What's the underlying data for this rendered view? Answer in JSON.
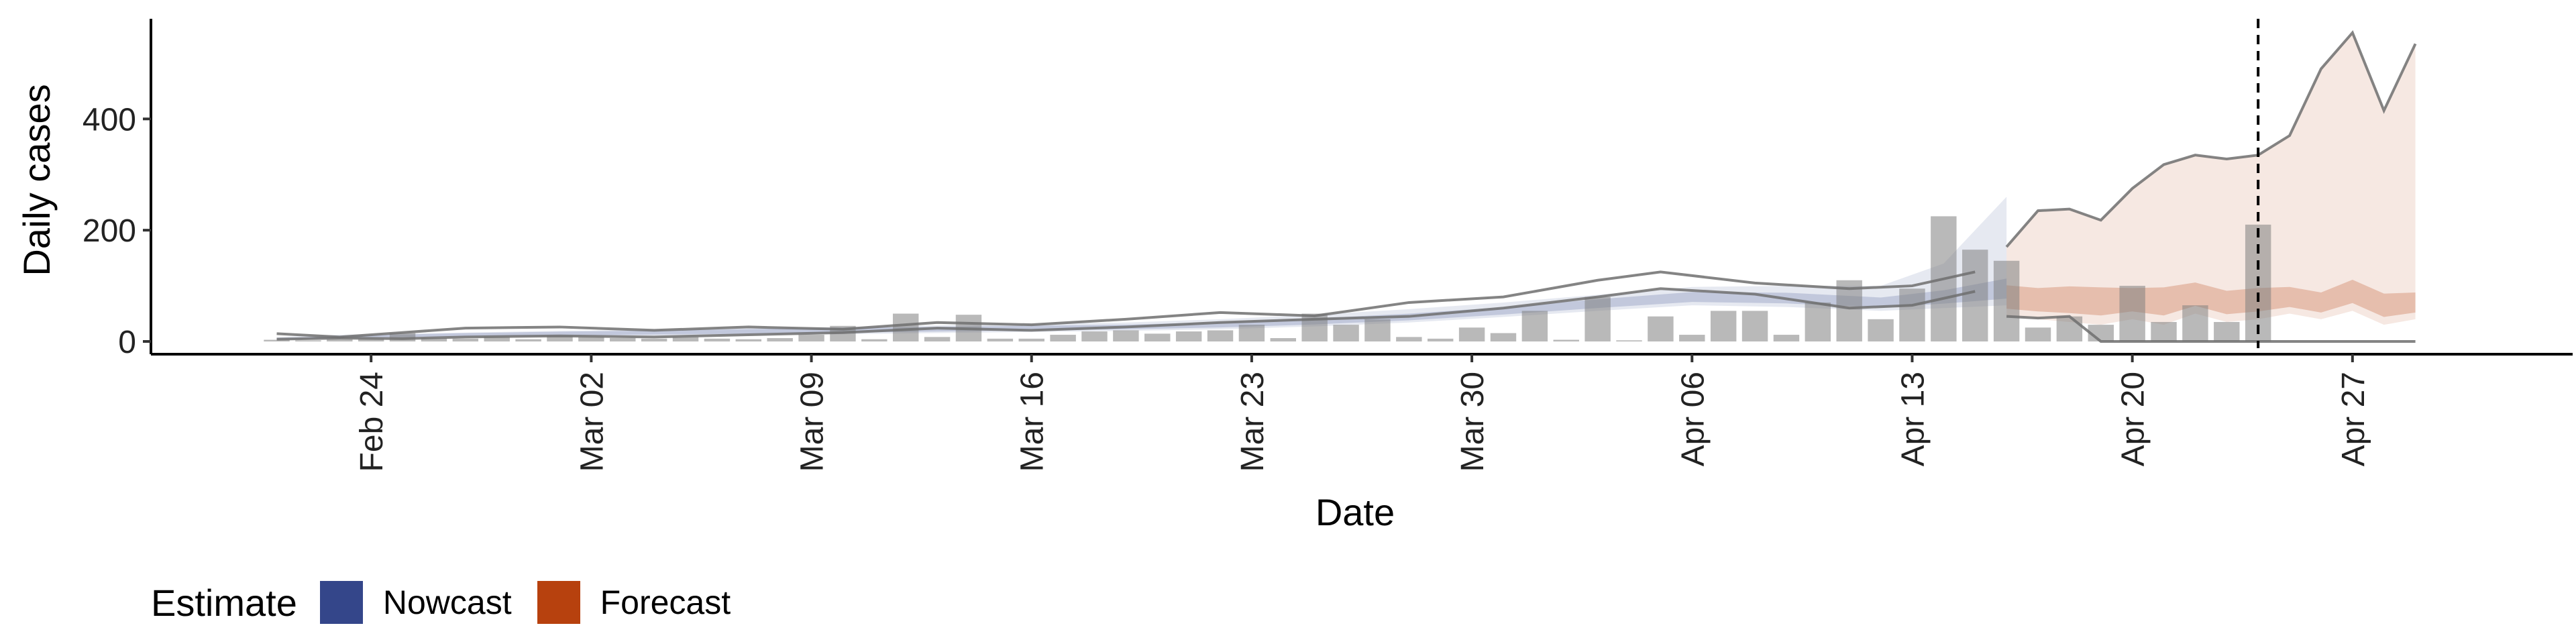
{
  "chart_data": {
    "type": "bar",
    "xlabel": "Date",
    "ylabel": "Daily cases",
    "ylim": [
      0,
      580
    ],
    "yticks": [
      0,
      200,
      400
    ],
    "x_ticks": [
      {
        "date": "2020-02-24",
        "label": "Feb 24"
      },
      {
        "date": "2020-03-02",
        "label": "Mar 02"
      },
      {
        "date": "2020-03-09",
        "label": "Mar 09"
      },
      {
        "date": "2020-03-16",
        "label": "Mar 16"
      },
      {
        "date": "2020-03-23",
        "label": "Mar 23"
      },
      {
        "date": "2020-03-30",
        "label": "Mar 30"
      },
      {
        "date": "2020-04-06",
        "label": "Apr 06"
      },
      {
        "date": "2020-04-13",
        "label": "Apr 13"
      },
      {
        "date": "2020-04-20",
        "label": "Apr 20"
      },
      {
        "date": "2020-04-27",
        "label": "Apr 27"
      }
    ],
    "xlim": [
      "2020-02-17",
      "2020-05-04"
    ],
    "date_line": "2020-04-24",
    "bars": {
      "dates": [
        "2020-02-21",
        "2020-02-22",
        "2020-02-23",
        "2020-02-24",
        "2020-02-25",
        "2020-02-26",
        "2020-02-27",
        "2020-02-28",
        "2020-02-29",
        "2020-03-01",
        "2020-03-02",
        "2020-03-03",
        "2020-03-04",
        "2020-03-05",
        "2020-03-06",
        "2020-03-07",
        "2020-03-08",
        "2020-03-09",
        "2020-03-10",
        "2020-03-11",
        "2020-03-12",
        "2020-03-13",
        "2020-03-14",
        "2020-03-15",
        "2020-03-16",
        "2020-03-17",
        "2020-03-18",
        "2020-03-19",
        "2020-03-20",
        "2020-03-21",
        "2020-03-22",
        "2020-03-23",
        "2020-03-24",
        "2020-03-25",
        "2020-03-26",
        "2020-03-27",
        "2020-03-28",
        "2020-03-29",
        "2020-03-30",
        "2020-03-31",
        "2020-04-01",
        "2020-04-02",
        "2020-04-03",
        "2020-04-04",
        "2020-04-05",
        "2020-04-06",
        "2020-04-07",
        "2020-04-08",
        "2020-04-09",
        "2020-04-10",
        "2020-04-11",
        "2020-04-12",
        "2020-04-13",
        "2020-04-14",
        "2020-04-15",
        "2020-04-16",
        "2020-04-17",
        "2020-04-18",
        "2020-04-19",
        "2020-04-20",
        "2020-04-21",
        "2020-04-22",
        "2020-04-23",
        "2020-04-24"
      ],
      "values": [
        3,
        2,
        4,
        5,
        15,
        6,
        5,
        8,
        4,
        10,
        8,
        6,
        5,
        8,
        5,
        4,
        6,
        12,
        28,
        4,
        50,
        8,
        48,
        5,
        5,
        12,
        18,
        20,
        14,
        18,
        20,
        30,
        6,
        50,
        30,
        40,
        8,
        5,
        25,
        15,
        55,
        3,
        80,
        2,
        45,
        12,
        55,
        55,
        12,
        70,
        110,
        40,
        95,
        225,
        165,
        145,
        25,
        45,
        30,
        100,
        35,
        65,
        35,
        210
      ]
    },
    "series": [
      {
        "name": "Nowcast",
        "color": "#34468a",
        "dates": [
          "2020-02-21",
          "2020-02-23",
          "2020-02-25",
          "2020-02-27",
          "2020-03-01",
          "2020-03-04",
          "2020-03-07",
          "2020-03-10",
          "2020-03-13",
          "2020-03-16",
          "2020-03-19",
          "2020-03-22",
          "2020-03-25",
          "2020-03-28",
          "2020-03-31",
          "2020-04-03",
          "2020-04-06",
          "2020-04-09",
          "2020-04-12",
          "2020-04-14",
          "2020-04-16"
        ],
        "median": [
          5,
          8,
          10,
          12,
          14,
          16,
          18,
          20,
          22,
          24,
          26,
          30,
          36,
          44,
          55,
          68,
          80,
          78,
          70,
          80,
          95
        ],
        "lower": [
          3,
          5,
          6,
          7,
          8,
          10,
          11,
          13,
          15,
          17,
          19,
          22,
          27,
          34,
          44,
          55,
          65,
          62,
          55,
          60,
          65
        ],
        "upper": [
          8,
          12,
          14,
          16,
          19,
          21,
          24,
          26,
          29,
          32,
          34,
          40,
          48,
          58,
          70,
          84,
          98,
          100,
          100,
          140,
          260
        ]
      },
      {
        "name": "Forecast",
        "color": "#b7410e",
        "dates": [
          "2020-04-16",
          "2020-04-17",
          "2020-04-18",
          "2020-04-19",
          "2020-04-20",
          "2020-04-21",
          "2020-04-22",
          "2020-04-23",
          "2020-04-24",
          "2020-04-25",
          "2020-04-26",
          "2020-04-27",
          "2020-04-28",
          "2020-04-29"
        ],
        "median": [
          80,
          75,
          75,
          72,
          75,
          72,
          85,
          70,
          75,
          80,
          70,
          90,
          65,
          70
        ],
        "lower": [
          45,
          40,
          35,
          30,
          40,
          30,
          50,
          35,
          40,
          50,
          40,
          55,
          30,
          40
        ],
        "upper": [
          170,
          235,
          238,
          218,
          275,
          318,
          335,
          328,
          335,
          370,
          490,
          555,
          415,
          535
        ]
      }
    ],
    "sample_lines": [
      {
        "dates": [
          "2020-02-21",
          "2020-02-23",
          "2020-02-25",
          "2020-02-27",
          "2020-03-01",
          "2020-03-04",
          "2020-03-07",
          "2020-03-10",
          "2020-03-13",
          "2020-03-16",
          "2020-03-19",
          "2020-03-22",
          "2020-03-25",
          "2020-03-28",
          "2020-03-31",
          "2020-04-03",
          "2020-04-05",
          "2020-04-08",
          "2020-04-11",
          "2020-04-13",
          "2020-04-15"
        ],
        "values": [
          14,
          8,
          16,
          24,
          26,
          20,
          26,
          22,
          34,
          30,
          40,
          52,
          46,
          70,
          80,
          110,
          125,
          105,
          95,
          100,
          125
        ]
      },
      {
        "dates": [
          "2020-02-21",
          "2020-02-23",
          "2020-02-25",
          "2020-02-27",
          "2020-03-01",
          "2020-03-04",
          "2020-03-07",
          "2020-03-10",
          "2020-03-13",
          "2020-03-16",
          "2020-03-19",
          "2020-03-22",
          "2020-03-25",
          "2020-03-28",
          "2020-03-31",
          "2020-04-03",
          "2020-04-05",
          "2020-04-08",
          "2020-04-11",
          "2020-04-13",
          "2020-04-15"
        ],
        "values": [
          4,
          6,
          5,
          8,
          10,
          8,
          12,
          16,
          24,
          20,
          26,
          34,
          40,
          45,
          60,
          80,
          95,
          85,
          60,
          65,
          90
        ]
      },
      {
        "dates": [
          "2020-04-16",
          "2020-04-17",
          "2020-04-18",
          "2020-04-19",
          "2020-04-20",
          "2020-04-21",
          "2020-04-22",
          "2020-04-23",
          "2020-04-24",
          "2020-04-25",
          "2020-04-26",
          "2020-04-27",
          "2020-04-28",
          "2020-04-29"
        ],
        "values": [
          170,
          235,
          238,
          218,
          275,
          318,
          335,
          328,
          335,
          370,
          490,
          555,
          415,
          535
        ]
      },
      {
        "dates": [
          "2020-04-16",
          "2020-04-17",
          "2020-04-18",
          "2020-04-19",
          "2020-04-20",
          "2020-04-21",
          "2020-04-22",
          "2020-04-23",
          "2020-04-24",
          "2020-04-25",
          "2020-04-26",
          "2020-04-27",
          "2020-04-28",
          "2020-04-29"
        ],
        "values": [
          45,
          42,
          45,
          0,
          0,
          0,
          0,
          0,
          0,
          0,
          0,
          0,
          0,
          0
        ]
      }
    ]
  },
  "legend": {
    "title": "Estimate",
    "items": [
      {
        "label": "Nowcast",
        "color": "#34468a"
      },
      {
        "label": "Forecast",
        "color": "#b7410e"
      }
    ]
  }
}
